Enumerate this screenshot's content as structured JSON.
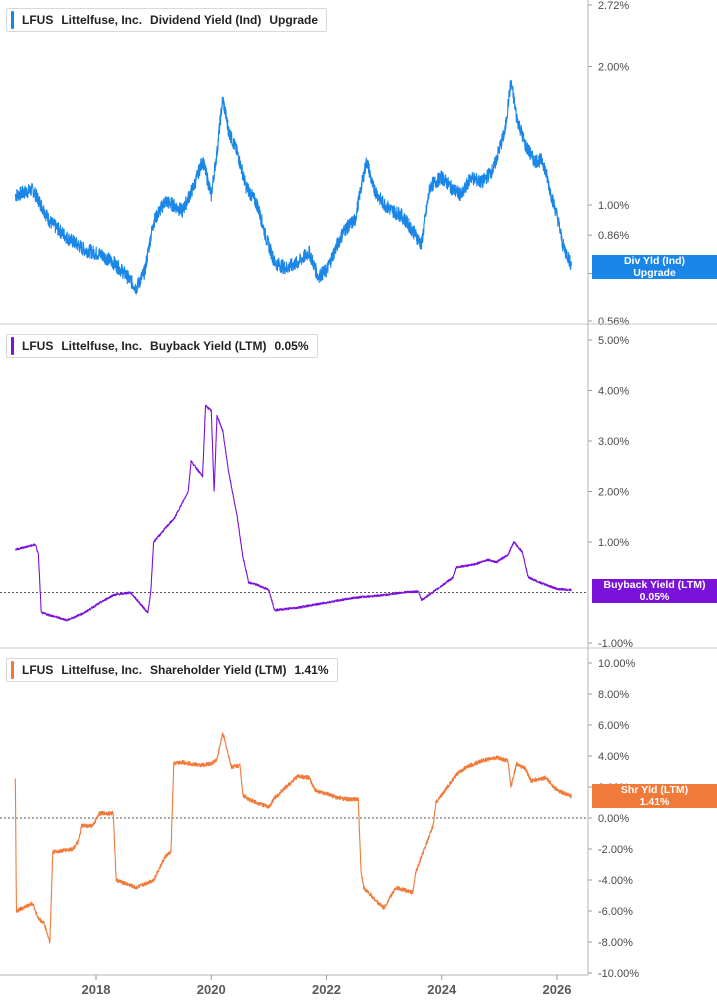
{
  "colors": {
    "div": "#1a86e8",
    "buyback": "#7b12d9",
    "shareholder": "#f07a3a",
    "grid": "#cfcfcf"
  },
  "x_axis": {
    "ticks": [
      "2018",
      "2020",
      "2022",
      "2024",
      "2026"
    ]
  },
  "chart_data": [
    {
      "type": "line",
      "legend": {
        "ticker": "LFUS",
        "company": "Littelfuse, Inc.",
        "metric": "Dividend Yield (Ind)",
        "value": "Upgrade"
      },
      "flag": {
        "line1": "Div Yld (Ind)",
        "line2": "Upgrade"
      },
      "y_scale": "log",
      "y_ticks": [
        "2.72%",
        "2.00%",
        "1.00%",
        "0.86%",
        "0.71%",
        "0.56%"
      ],
      "y_tick_values": [
        2.72,
        2.0,
        1.0,
        0.86,
        0.71,
        0.56
      ],
      "ylim": [
        0.56,
        2.72
      ],
      "x": [
        2016.6,
        2016.9,
        2017.2,
        2017.5,
        2017.8,
        2018.1,
        2018.3,
        2018.5,
        2018.7,
        2018.85,
        2019.0,
        2019.2,
        2019.35,
        2019.5,
        2019.7,
        2019.85,
        2020.0,
        2020.1,
        2020.2,
        2020.3,
        2020.45,
        2020.6,
        2020.8,
        2020.95,
        2021.1,
        2021.3,
        2021.5,
        2021.7,
        2021.85,
        2022.0,
        2022.15,
        2022.3,
        2022.5,
        2022.7,
        2022.8,
        2022.95,
        2023.1,
        2023.3,
        2023.5,
        2023.65,
        2023.8,
        2024.0,
        2024.2,
        2024.35,
        2024.5,
        2024.7,
        2024.9,
        2025.1,
        2025.2,
        2025.3,
        2025.45,
        2025.6,
        2025.75,
        2025.9,
        2026.0,
        2026.1,
        2026.25
      ],
      "values": [
        1.05,
        1.08,
        0.92,
        0.85,
        0.8,
        0.78,
        0.75,
        0.71,
        0.66,
        0.72,
        0.92,
        1.02,
        1.0,
        0.97,
        1.1,
        1.25,
        1.05,
        1.3,
        1.7,
        1.45,
        1.3,
        1.1,
        1.0,
        0.85,
        0.75,
        0.73,
        0.75,
        0.79,
        0.7,
        0.72,
        0.8,
        0.88,
        0.93,
        1.25,
        1.1,
        1.02,
        0.98,
        0.95,
        0.88,
        0.82,
        1.1,
        1.15,
        1.08,
        1.05,
        1.15,
        1.12,
        1.2,
        1.45,
        1.85,
        1.55,
        1.35,
        1.25,
        1.25,
        1.05,
        0.95,
        0.82,
        0.74
      ]
    },
    {
      "type": "line",
      "legend": {
        "ticker": "LFUS",
        "company": "Littelfuse, Inc.",
        "metric": "Buyback Yield (LTM)",
        "value": "0.05%"
      },
      "flag": {
        "line1": "Buyback Yield (LTM)",
        "line2": "0.05%"
      },
      "y_ticks": [
        "5.00%",
        "4.00%",
        "3.00%",
        "2.00%",
        "1.00%",
        "-1.00%"
      ],
      "y_tick_values": [
        5,
        4,
        3,
        2,
        1,
        -1
      ],
      "ylim": [
        -1.0,
        5.0
      ],
      "zero_line": true,
      "x": [
        2016.6,
        2016.95,
        2017.0,
        2017.05,
        2017.5,
        2017.8,
        2018.0,
        2018.3,
        2018.6,
        2018.9,
        2018.95,
        2019.0,
        2019.3,
        2019.35,
        2019.6,
        2019.65,
        2019.85,
        2019.9,
        2020.0,
        2020.05,
        2020.1,
        2020.2,
        2020.3,
        2020.45,
        2020.55,
        2020.65,
        2020.8,
        2021.0,
        2021.1,
        2021.5,
        2022.0,
        2022.5,
        2023.0,
        2023.3,
        2023.6,
        2023.65,
        2023.9,
        2024.2,
        2024.25,
        2024.55,
        2024.8,
        2024.95,
        2025.15,
        2025.25,
        2025.4,
        2025.5,
        2025.7,
        2026.0,
        2026.25
      ],
      "values": [
        0.85,
        0.95,
        0.75,
        -0.4,
        -0.55,
        -0.4,
        -0.25,
        -0.05,
        0.0,
        -0.4,
        0.0,
        1.0,
        1.4,
        1.45,
        2.0,
        2.6,
        2.3,
        3.7,
        3.6,
        2.0,
        3.5,
        3.2,
        2.4,
        1.5,
        0.7,
        0.2,
        0.15,
        0.05,
        -0.35,
        -0.3,
        -0.2,
        -0.1,
        -0.05,
        0.0,
        0.02,
        -0.15,
        0.05,
        0.3,
        0.5,
        0.55,
        0.65,
        0.6,
        0.75,
        1.0,
        0.8,
        0.3,
        0.2,
        0.07,
        0.05
      ]
    },
    {
      "type": "line",
      "legend": {
        "ticker": "LFUS",
        "company": "Littelfuse, Inc.",
        "metric": "Shareholder Yield (LTM)",
        "value": "1.41%"
      },
      "flag": {
        "line1": "Shr Yld (LTM)",
        "line2": "1.41%"
      },
      "y_ticks": [
        "10.00%",
        "8.00%",
        "6.00%",
        "4.00%",
        "2.00%",
        "0.00%",
        "-2.00%",
        "-4.00%",
        "-6.00%",
        "-8.00%",
        "-10.00%"
      ],
      "y_tick_values": [
        10,
        8,
        6,
        4,
        2,
        0,
        -2,
        -4,
        -6,
        -8,
        -10
      ],
      "ylim": [
        -10.0,
        10.0
      ],
      "zero_line": true,
      "x": [
        2016.6,
        2016.62,
        2016.9,
        2017.0,
        2017.1,
        2017.2,
        2017.25,
        2017.6,
        2017.7,
        2017.75,
        2017.95,
        2018.05,
        2018.3,
        2018.35,
        2018.7,
        2019.0,
        2019.2,
        2019.3,
        2019.35,
        2019.5,
        2019.8,
        2020.0,
        2020.1,
        2020.2,
        2020.35,
        2020.5,
        2020.55,
        2020.65,
        2021.0,
        2021.1,
        2021.5,
        2021.7,
        2021.8,
        2022.2,
        2022.4,
        2022.55,
        2022.6,
        2022.65,
        2022.9,
        2023.0,
        2023.2,
        2023.5,
        2023.55,
        2023.85,
        2023.9,
        2024.3,
        2024.5,
        2024.7,
        2024.95,
        2025.15,
        2025.2,
        2025.3,
        2025.45,
        2025.55,
        2025.8,
        2026.0,
        2026.25
      ],
      "values": [
        2.5,
        -6.0,
        -5.5,
        -6.5,
        -6.8,
        -8.0,
        -2.2,
        -2.0,
        -1.5,
        -0.5,
        -0.5,
        0.3,
        0.3,
        -4.0,
        -4.5,
        -4.0,
        -2.5,
        -2.2,
        3.5,
        3.6,
        3.4,
        3.5,
        3.8,
        5.5,
        3.3,
        3.4,
        1.5,
        1.2,
        0.7,
        1.3,
        2.7,
        2.6,
        1.8,
        1.3,
        1.2,
        1.2,
        -3.5,
        -4.5,
        -5.5,
        -5.8,
        -4.5,
        -4.8,
        -3.5,
        -0.5,
        1.0,
        3.0,
        3.4,
        3.7,
        3.9,
        3.7,
        2.0,
        3.5,
        3.2,
        2.4,
        2.6,
        1.8,
        1.4
      ]
    }
  ]
}
